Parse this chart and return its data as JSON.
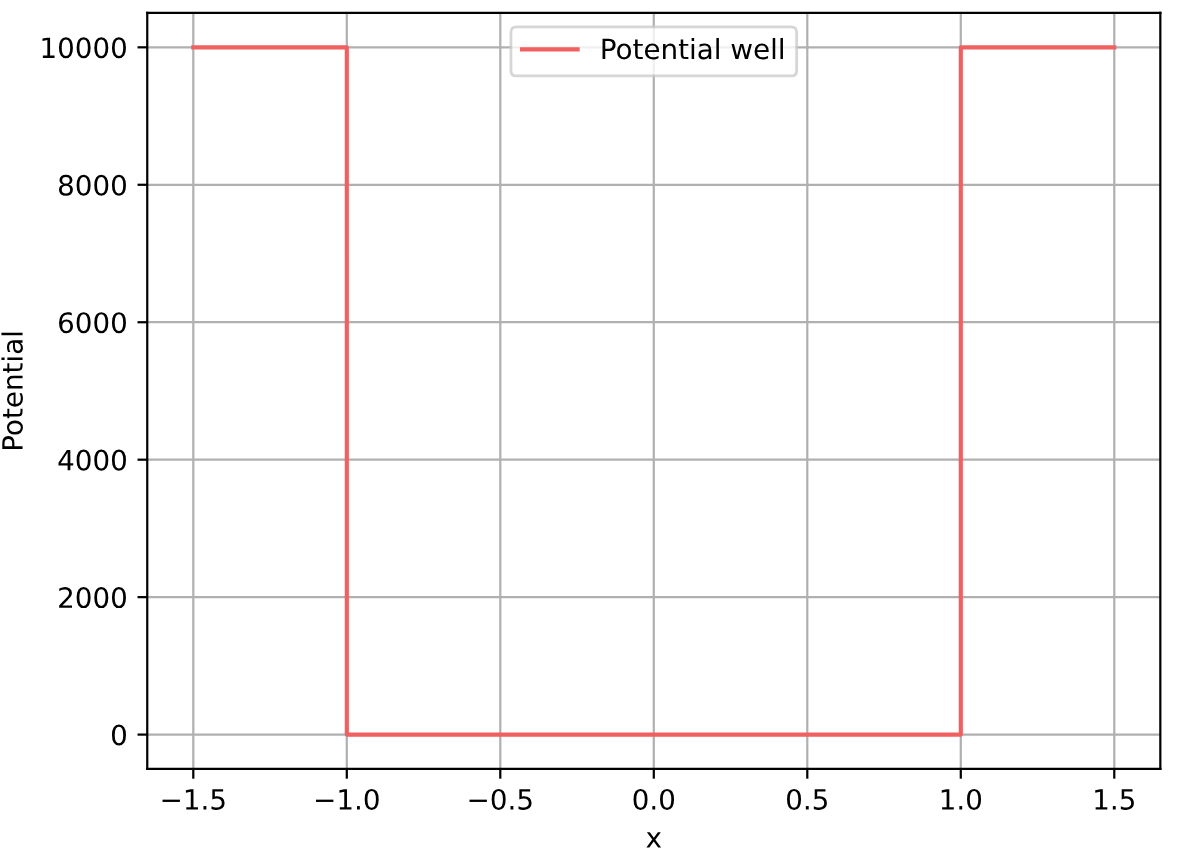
{
  "chart_data": {
    "type": "line",
    "xlabel": "x",
    "ylabel": "Potential",
    "x": [
      -1.5,
      -1.0,
      -1.0,
      1.0,
      1.0,
      1.5
    ],
    "series": [
      {
        "name": "Potential well",
        "color": "#f06060",
        "values": [
          10000,
          10000,
          0,
          0,
          10000,
          10000
        ]
      }
    ],
    "xlim": [
      -1.65,
      1.65
    ],
    "ylim": [
      -500,
      10500
    ],
    "xticks": [
      {
        "value": -1.5,
        "label": "−1.5"
      },
      {
        "value": -1.0,
        "label": "−1.0"
      },
      {
        "value": -0.5,
        "label": "−0.5"
      },
      {
        "value": 0.0,
        "label": "0.0"
      },
      {
        "value": 0.5,
        "label": "0.5"
      },
      {
        "value": 1.0,
        "label": "1.0"
      },
      {
        "value": 1.5,
        "label": "1.5"
      }
    ],
    "yticks": [
      0,
      2000,
      4000,
      6000,
      8000,
      10000
    ],
    "grid": true,
    "legend": "top",
    "line_style": "solid"
  }
}
